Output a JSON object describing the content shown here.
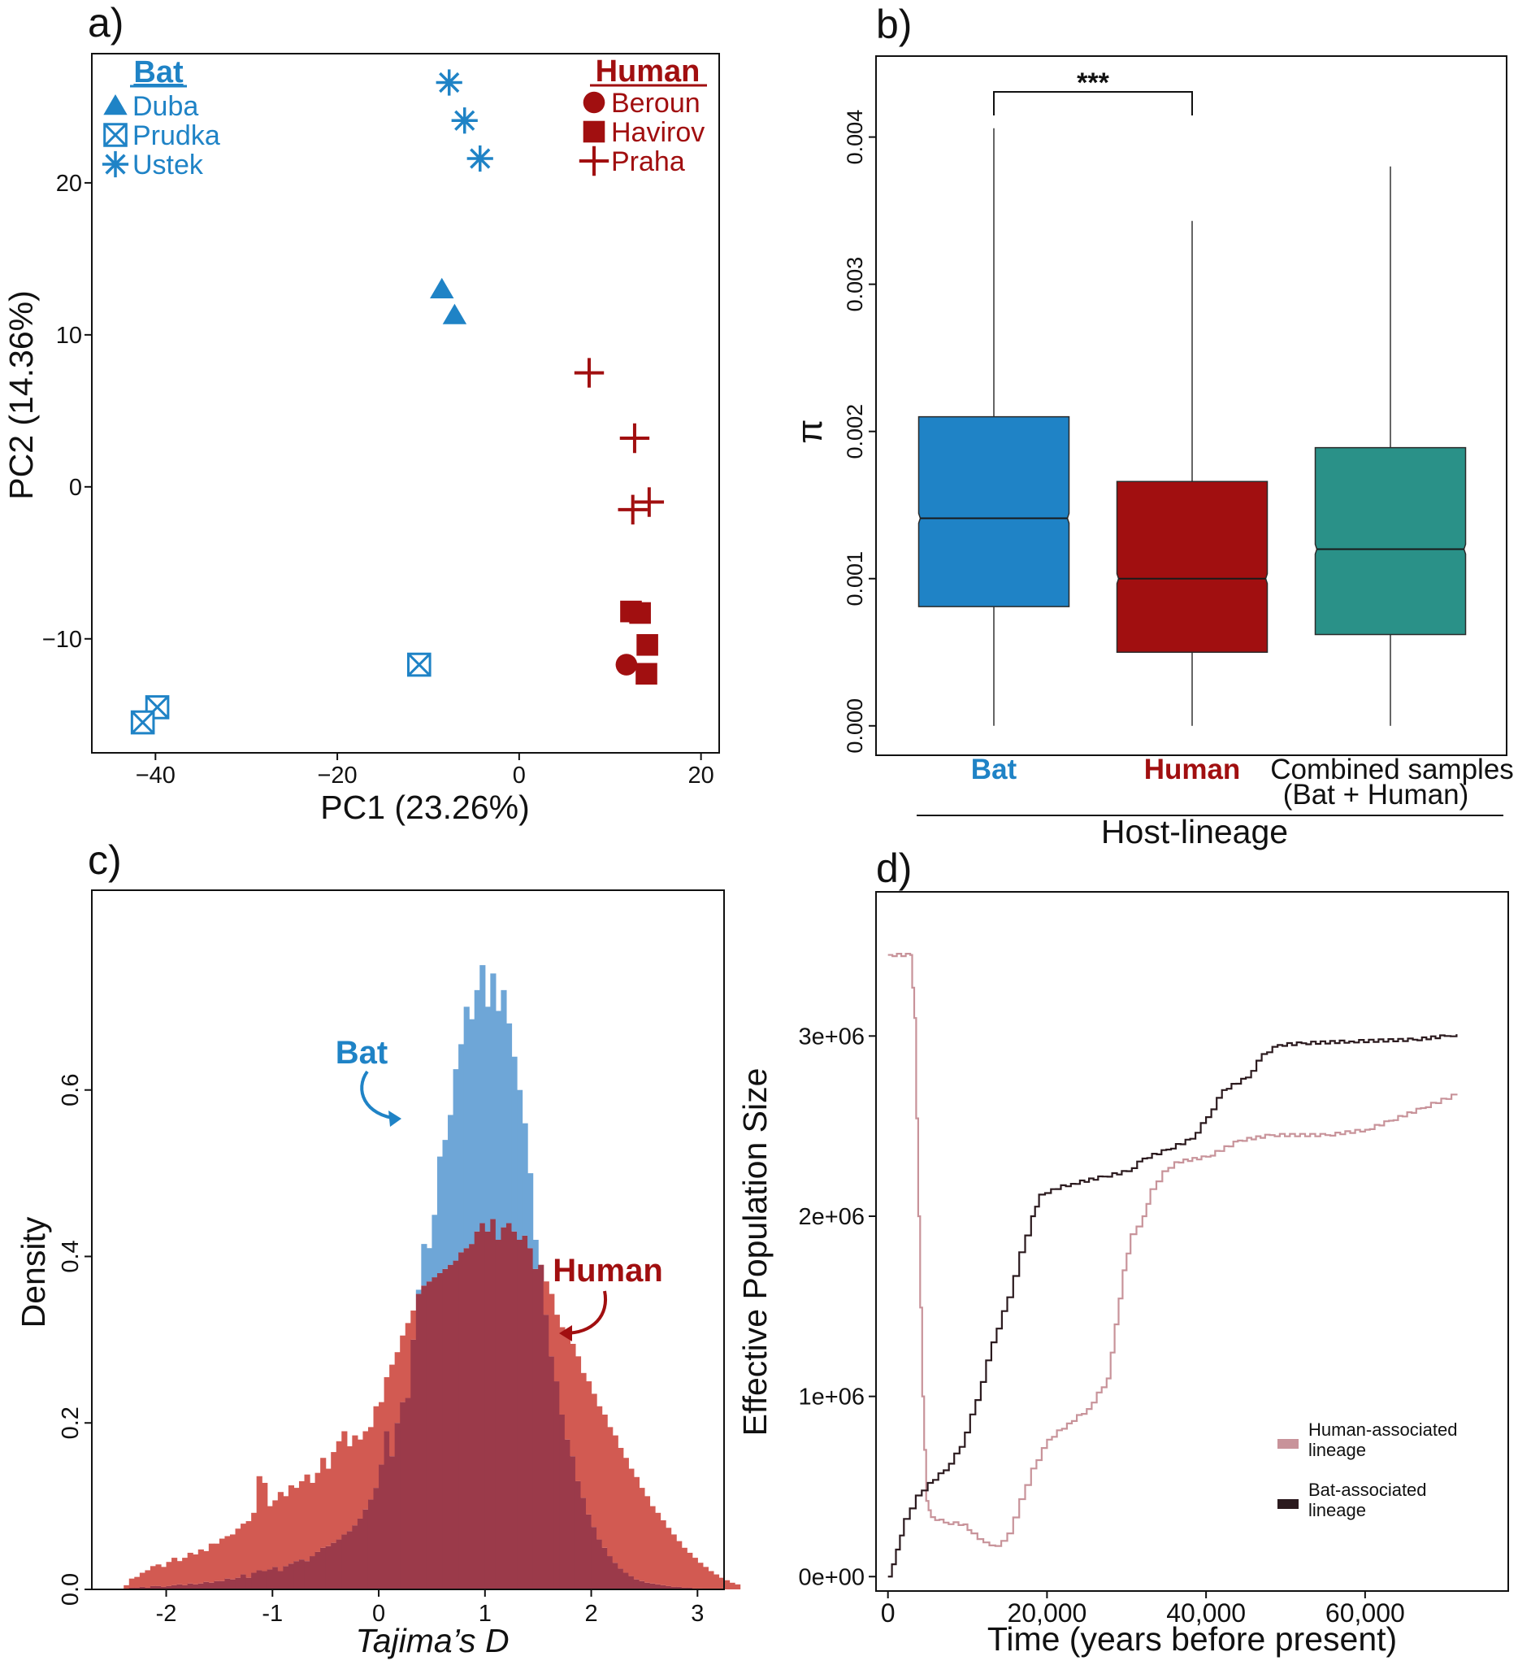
{
  "colors": {
    "bat": "#1f83c6",
    "human": "#a10f10",
    "combined": "#2a9188",
    "bat_hist": "#6ea6d7",
    "human_hist": "#d25a52",
    "overlap": "#9b3a4a",
    "human_line": "#c8939a",
    "bat_line": "#2b1a1e"
  },
  "panels": {
    "a": "a)",
    "b": "b)",
    "c": "c)",
    "d": "d)"
  },
  "chart_data": [
    {
      "panel": "a",
      "type": "scatter",
      "xlabel": "PC1 (23.26%)",
      "ylabel": "PC2 (14.36%)",
      "xlim": [
        -47,
        22
      ],
      "ylim": [
        -17.5,
        28.5
      ],
      "xticks": [
        {
          "v": -40,
          "label": "−40"
        },
        {
          "v": -20,
          "label": "−20"
        },
        {
          "v": 0,
          "label": "0"
        },
        {
          "v": 20,
          "label": "20"
        }
      ],
      "yticks": [
        {
          "v": -10,
          "label": "−10"
        },
        {
          "v": 0,
          "label": "0"
        },
        {
          "v": 10,
          "label": "10"
        },
        {
          "v": 20,
          "label": "20"
        }
      ],
      "legend_groups": [
        {
          "title": "Bat",
          "color": "bat",
          "placement": "top-left",
          "items": [
            {
              "label": "Duba",
              "shape": "triangle"
            },
            {
              "label": "Prudka",
              "shape": "boxx"
            },
            {
              "label": "Ustek",
              "shape": "asterisk"
            }
          ]
        },
        {
          "title": "Human",
          "color": "human",
          "placement": "top-right",
          "items": [
            {
              "label": "Beroun",
              "shape": "circle"
            },
            {
              "label": "Havirov",
              "shape": "square"
            },
            {
              "label": "Praha",
              "shape": "plus"
            }
          ]
        }
      ],
      "points": [
        {
          "group": "Ustek",
          "shape": "asterisk",
          "color": "bat",
          "x": -7.7,
          "y": 26.6
        },
        {
          "group": "Ustek",
          "shape": "asterisk",
          "color": "bat",
          "x": -6.0,
          "y": 24.1
        },
        {
          "group": "Ustek",
          "shape": "asterisk",
          "color": "bat",
          "x": -4.3,
          "y": 21.6
        },
        {
          "group": "Duba",
          "shape": "triangle",
          "color": "bat",
          "x": -8.5,
          "y": 13.0
        },
        {
          "group": "Duba",
          "shape": "triangle",
          "color": "bat",
          "x": -7.1,
          "y": 11.3
        },
        {
          "group": "Prudka",
          "shape": "boxx",
          "color": "bat",
          "x": -11.0,
          "y": -11.7
        },
        {
          "group": "Prudka",
          "shape": "boxx",
          "color": "bat",
          "x": -39.8,
          "y": -14.5
        },
        {
          "group": "Prudka",
          "shape": "boxx",
          "color": "bat",
          "x": -41.4,
          "y": -15.5
        },
        {
          "group": "Praha",
          "shape": "plus",
          "color": "human",
          "x": 7.7,
          "y": 7.5
        },
        {
          "group": "Praha",
          "shape": "plus",
          "color": "human",
          "x": 12.7,
          "y": 3.2
        },
        {
          "group": "Praha",
          "shape": "plus",
          "color": "human",
          "x": 14.3,
          "y": -1.0
        },
        {
          "group": "Praha",
          "shape": "plus",
          "color": "human",
          "x": 12.5,
          "y": -1.5
        },
        {
          "group": "Havirov",
          "shape": "square",
          "color": "human",
          "x": 12.3,
          "y": -8.2
        },
        {
          "group": "Havirov",
          "shape": "square",
          "color": "human",
          "x": 13.3,
          "y": -8.3
        },
        {
          "group": "Havirov",
          "shape": "square",
          "color": "human",
          "x": 14.1,
          "y": -10.4
        },
        {
          "group": "Havirov",
          "shape": "square",
          "color": "human",
          "x": 14.0,
          "y": -12.3
        },
        {
          "group": "Beroun",
          "shape": "circle",
          "color": "human",
          "x": 11.8,
          "y": -11.7
        }
      ]
    },
    {
      "panel": "b",
      "type": "box",
      "ylabel": "π",
      "xlabel": "Host-lineage",
      "ylim": [
        -0.0002,
        0.00455
      ],
      "yticks": [
        {
          "v": 0,
          "label": "0.000"
        },
        {
          "v": 0.001,
          "label": "0.001"
        },
        {
          "v": 0.002,
          "label": "0.002"
        },
        {
          "v": 0.003,
          "label": "0.003"
        },
        {
          "v": 0.004,
          "label": "0.004"
        }
      ],
      "boxes": [
        {
          "label": "Bat",
          "label_color": "bat",
          "fill": "bat",
          "min": 0.0,
          "q1": 0.00081,
          "median": 0.00141,
          "q3": 0.0021,
          "max": 0.00406
        },
        {
          "label": "Human",
          "label_color": "human",
          "fill": "human",
          "min": 0.0,
          "q1": 0.0005,
          "median": 0.001,
          "q3": 0.00166,
          "max": 0.00343
        },
        {
          "label": "Combined samples",
          "label2": "(Bat + Human)",
          "label_color": "text",
          "fill": "combined",
          "min": 0.0,
          "q1": 0.00062,
          "median": 0.0012,
          "q3": 0.00189,
          "max": 0.0038
        }
      ],
      "significance": {
        "from": 0,
        "to": 1,
        "label": "***"
      }
    },
    {
      "panel": "c",
      "type": "histogram",
      "xlabel": "Tajima’s D",
      "ylabel": "Density",
      "xlim": [
        -2.7,
        3.25
      ],
      "ylim": [
        0,
        0.84
      ],
      "xticks": [
        {
          "v": -2,
          "label": "-2"
        },
        {
          "v": -1,
          "label": "-1"
        },
        {
          "v": 0,
          "label": "0"
        },
        {
          "v": 1,
          "label": "1"
        },
        {
          "v": 2,
          "label": "2"
        },
        {
          "v": 3,
          "label": "3"
        }
      ],
      "yticks": [
        {
          "v": 0,
          "label": "0.0"
        },
        {
          "v": 0.2,
          "label": "0.2"
        },
        {
          "v": 0.4,
          "label": "0.4"
        },
        {
          "v": 0.6,
          "label": "0.6"
        }
      ],
      "bin_start": -2.4,
      "bin_width": 0.05,
      "series": [
        {
          "name": "Bat",
          "color": "bat",
          "values": [
            0.0,
            0.002,
            0.002,
            0.003,
            0.002,
            0.004,
            0.004,
            0.003,
            0.004,
            0.005,
            0.006,
            0.005,
            0.007,
            0.006,
            0.007,
            0.009,
            0.008,
            0.01,
            0.01,
            0.013,
            0.012,
            0.014,
            0.018,
            0.014,
            0.02,
            0.023,
            0.022,
            0.024,
            0.027,
            0.022,
            0.028,
            0.031,
            0.034,
            0.036,
            0.034,
            0.04,
            0.045,
            0.05,
            0.052,
            0.056,
            0.06,
            0.066,
            0.07,
            0.077,
            0.085,
            0.096,
            0.108,
            0.122,
            0.15,
            0.19,
            0.16,
            0.2,
            0.225,
            0.23,
            0.3,
            0.36,
            0.415,
            0.41,
            0.45,
            0.52,
            0.54,
            0.57,
            0.625,
            0.655,
            0.7,
            0.685,
            0.72,
            0.75,
            0.7,
            0.74,
            0.695,
            0.72,
            0.68,
            0.64,
            0.6,
            0.56,
            0.5,
            0.42,
            0.39,
            0.33,
            0.28,
            0.25,
            0.21,
            0.18,
            0.16,
            0.13,
            0.11,
            0.09,
            0.075,
            0.06,
            0.05,
            0.04,
            0.032,
            0.025,
            0.02,
            0.016,
            0.012,
            0.01,
            0.008,
            0.007,
            0.006,
            0.005,
            0.004,
            0.003,
            0.003,
            0.002,
            0.002,
            0.001,
            0.001
          ]
        },
        {
          "name": "Human",
          "color": "human",
          "values": [
            0.005,
            0.013,
            0.015,
            0.02,
            0.023,
            0.028,
            0.03,
            0.027,
            0.033,
            0.038,
            0.034,
            0.038,
            0.044,
            0.042,
            0.048,
            0.046,
            0.055,
            0.055,
            0.061,
            0.064,
            0.066,
            0.073,
            0.079,
            0.082,
            0.092,
            0.136,
            0.128,
            0.1,
            0.107,
            0.117,
            0.112,
            0.125,
            0.122,
            0.13,
            0.138,
            0.128,
            0.14,
            0.158,
            0.145,
            0.165,
            0.178,
            0.19,
            0.172,
            0.185,
            0.18,
            0.19,
            0.195,
            0.22,
            0.225,
            0.255,
            0.27,
            0.285,
            0.305,
            0.32,
            0.335,
            0.355,
            0.365,
            0.37,
            0.375,
            0.38,
            0.385,
            0.39,
            0.395,
            0.405,
            0.41,
            0.415,
            0.43,
            0.44,
            0.43,
            0.445,
            0.42,
            0.435,
            0.44,
            0.43,
            0.42,
            0.425,
            0.41,
            0.385,
            0.39,
            0.37,
            0.355,
            0.33,
            0.315,
            0.31,
            0.295,
            0.28,
            0.26,
            0.25,
            0.235,
            0.22,
            0.21,
            0.195,
            0.185,
            0.17,
            0.158,
            0.145,
            0.135,
            0.122,
            0.112,
            0.1,
            0.092,
            0.083,
            0.074,
            0.066,
            0.058,
            0.05,
            0.044,
            0.038,
            0.032,
            0.027,
            0.022,
            0.018,
            0.014,
            0.011,
            0.008,
            0.006
          ]
        }
      ],
      "annotations": [
        {
          "text": "Bat",
          "color": "bat"
        },
        {
          "text": "Human",
          "color": "human"
        }
      ]
    },
    {
      "panel": "d",
      "type": "line",
      "xlabel": "Time (years before present)",
      "ylabel": "Effective Population Size",
      "xlim": [
        -1500,
        78000
      ],
      "ylim": [
        -80000,
        3800000
      ],
      "xticks": [
        {
          "v": 0,
          "label": "0"
        },
        {
          "v": 20000,
          "label": "20,000"
        },
        {
          "v": 40000,
          "label": "40,000"
        },
        {
          "v": 60000,
          "label": "60,000"
        }
      ],
      "yticks": [
        {
          "v": 0,
          "label": "0e+00"
        },
        {
          "v": 1000000,
          "label": "1e+06"
        },
        {
          "v": 2000000,
          "label": "2e+06"
        },
        {
          "v": 3000000,
          "label": "3e+06"
        }
      ],
      "legend": {
        "placement": "bottom-right"
      },
      "series": [
        {
          "name": "Human-associated lineage",
          "legend_lines": [
            "Human-associated",
            "lineage"
          ],
          "color": "human_line",
          "points": [
            [
              0,
              3450000
            ],
            [
              2800,
              3450000
            ],
            [
              3300,
              3100000
            ],
            [
              3800,
              2000000
            ],
            [
              4300,
              1000000
            ],
            [
              4800,
              420000
            ],
            [
              5400,
              330000
            ],
            [
              7000,
              300000
            ],
            [
              9500,
              290000
            ],
            [
              10500,
              240000
            ],
            [
              12000,
              190000
            ],
            [
              13500,
              170000
            ],
            [
              15000,
              240000
            ],
            [
              16500,
              430000
            ],
            [
              18000,
              600000
            ],
            [
              20000,
              760000
            ],
            [
              22500,
              850000
            ],
            [
              25000,
              930000
            ],
            [
              27500,
              1100000
            ],
            [
              28500,
              1400000
            ],
            [
              29500,
              1700000
            ],
            [
              30500,
              1900000
            ],
            [
              32000,
              2000000
            ],
            [
              33000,
              2150000
            ],
            [
              34500,
              2250000
            ],
            [
              36000,
              2300000
            ],
            [
              40000,
              2330000
            ],
            [
              44000,
              2420000
            ],
            [
              48000,
              2450000
            ],
            [
              55000,
              2450000
            ],
            [
              60000,
              2480000
            ],
            [
              63000,
              2530000
            ],
            [
              67000,
              2600000
            ],
            [
              71500,
              2680000
            ]
          ]
        },
        {
          "name": "Bat-associated lineage",
          "legend_lines": [
            "Bat-associated",
            "lineage"
          ],
          "color": "bat_line",
          "points": [
            [
              0,
              0
            ],
            [
              1000,
              150000
            ],
            [
              2000,
              320000
            ],
            [
              3500,
              450000
            ],
            [
              5000,
              520000
            ],
            [
              7000,
              590000
            ],
            [
              9000,
              720000
            ],
            [
              11000,
              980000
            ],
            [
              13000,
              1300000
            ],
            [
              15000,
              1550000
            ],
            [
              16500,
              1800000
            ],
            [
              18000,
              2000000
            ],
            [
              19000,
              2120000
            ],
            [
              20500,
              2150000
            ],
            [
              23000,
              2180000
            ],
            [
              27000,
              2220000
            ],
            [
              30000,
              2250000
            ],
            [
              32000,
              2320000
            ],
            [
              35000,
              2370000
            ],
            [
              38000,
              2430000
            ],
            [
              40000,
              2550000
            ],
            [
              42000,
              2700000
            ],
            [
              45000,
              2770000
            ],
            [
              47000,
              2900000
            ],
            [
              49000,
              2950000
            ],
            [
              52000,
              2960000
            ],
            [
              58000,
              2970000
            ],
            [
              66000,
              2980000
            ],
            [
              70000,
              3000000
            ],
            [
              71500,
              3010000
            ]
          ]
        }
      ]
    }
  ]
}
